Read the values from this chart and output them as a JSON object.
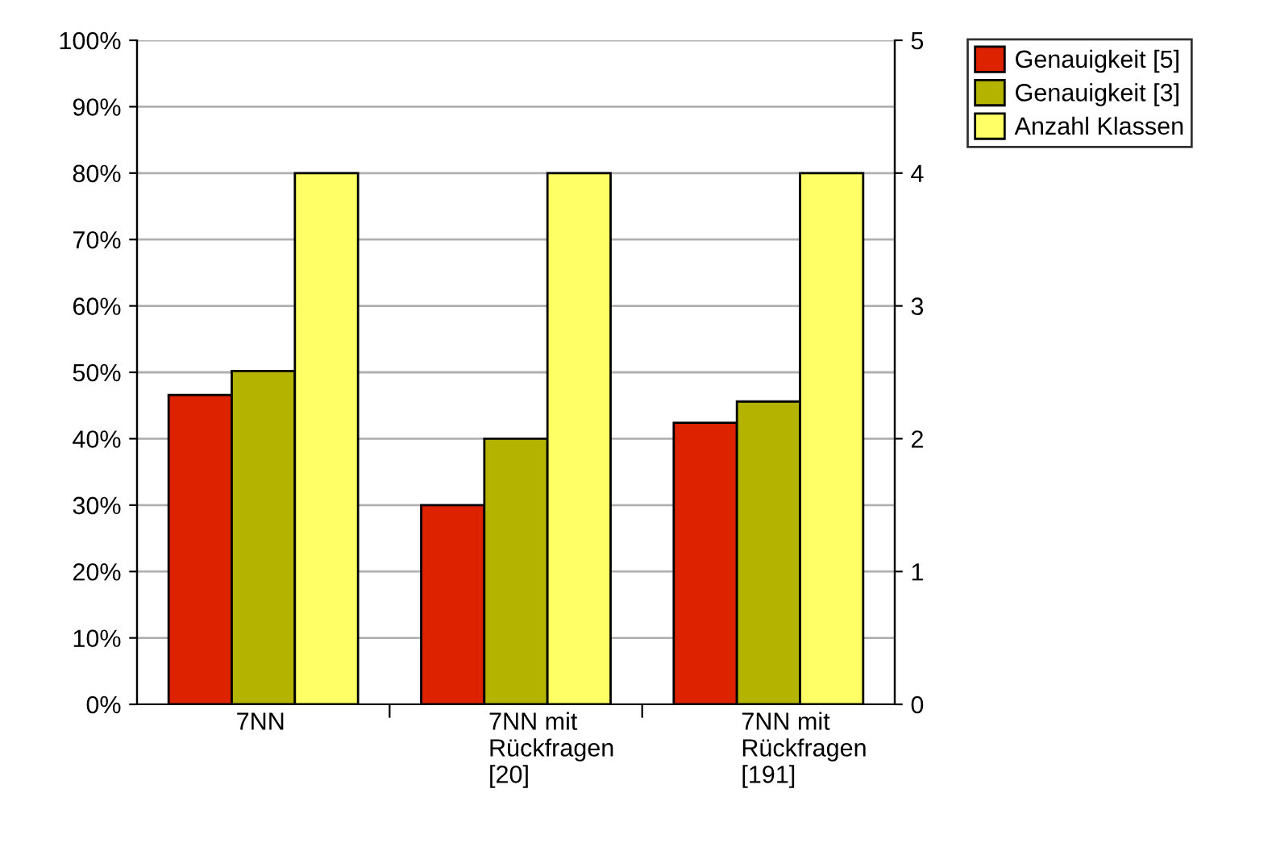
{
  "chart_data": {
    "type": "bar",
    "categories": [
      "7NN",
      "7NN mit\nRückfragen\n[20]",
      "7NN mit\nRückfragen\n[191]"
    ],
    "series": [
      {
        "name": "Genauigkeit [5]",
        "color": "#dd2200",
        "values": [
          46.6,
          30,
          42.4
        ]
      },
      {
        "name": "Genauigkeit [3]",
        "color": "#b3b300",
        "values": [
          50.2,
          40,
          45.6
        ]
      },
      {
        "name": "Anzahl Klassen",
        "color": "#ffff66",
        "values": [
          4,
          4,
          4
        ],
        "axis": "y2"
      }
    ],
    "ylim": [
      0,
      100
    ],
    "yticks": [
      {
        "value": 0,
        "label": "0%"
      },
      {
        "value": 10,
        "label": "10%"
      },
      {
        "value": 20,
        "label": "20%"
      },
      {
        "value": 30,
        "label": "30%"
      },
      {
        "value": 40,
        "label": "40%"
      },
      {
        "value": 50,
        "label": "50%"
      },
      {
        "value": 60,
        "label": "60%"
      },
      {
        "value": 70,
        "label": "70%"
      },
      {
        "value": 80,
        "label": "80%"
      },
      {
        "value": 90,
        "label": "90%"
      },
      {
        "value": 100,
        "label": "100%"
      }
    ],
    "y2lim": [
      0,
      5
    ],
    "y2ticks": [
      0,
      1,
      2,
      3,
      4,
      5
    ],
    "grid": "y",
    "legend": "top right"
  }
}
